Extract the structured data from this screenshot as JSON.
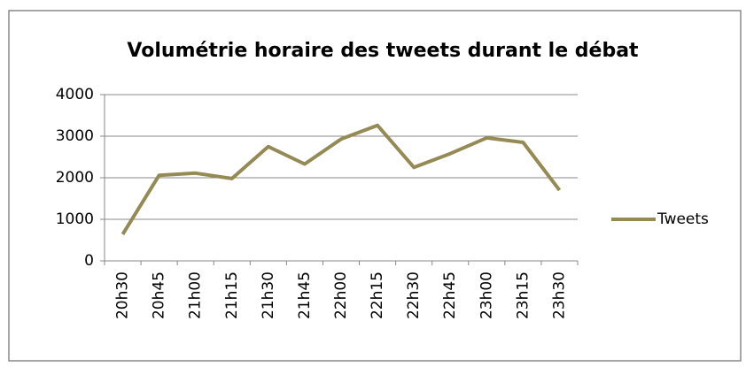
{
  "chart_data": {
    "type": "line",
    "title": "Volumétrie horaire des tweets durant le débat",
    "categories": [
      "20h30",
      "20h45",
      "21h00",
      "21h15",
      "21h30",
      "21h45",
      "22h00",
      "22h15",
      "22h30",
      "22h45",
      "23h00",
      "23h15",
      "23h30"
    ],
    "series": [
      {
        "name": "Tweets",
        "color": "#948a54",
        "values": [
          640,
          2060,
          2110,
          1980,
          2750,
          2330,
          2930,
          3260,
          2250,
          2580,
          2960,
          2850,
          1700
        ]
      }
    ],
    "ylim": [
      0,
      4000
    ],
    "yticks": [
      0,
      1000,
      2000,
      3000,
      4000
    ],
    "grid": true,
    "legend": "right"
  }
}
